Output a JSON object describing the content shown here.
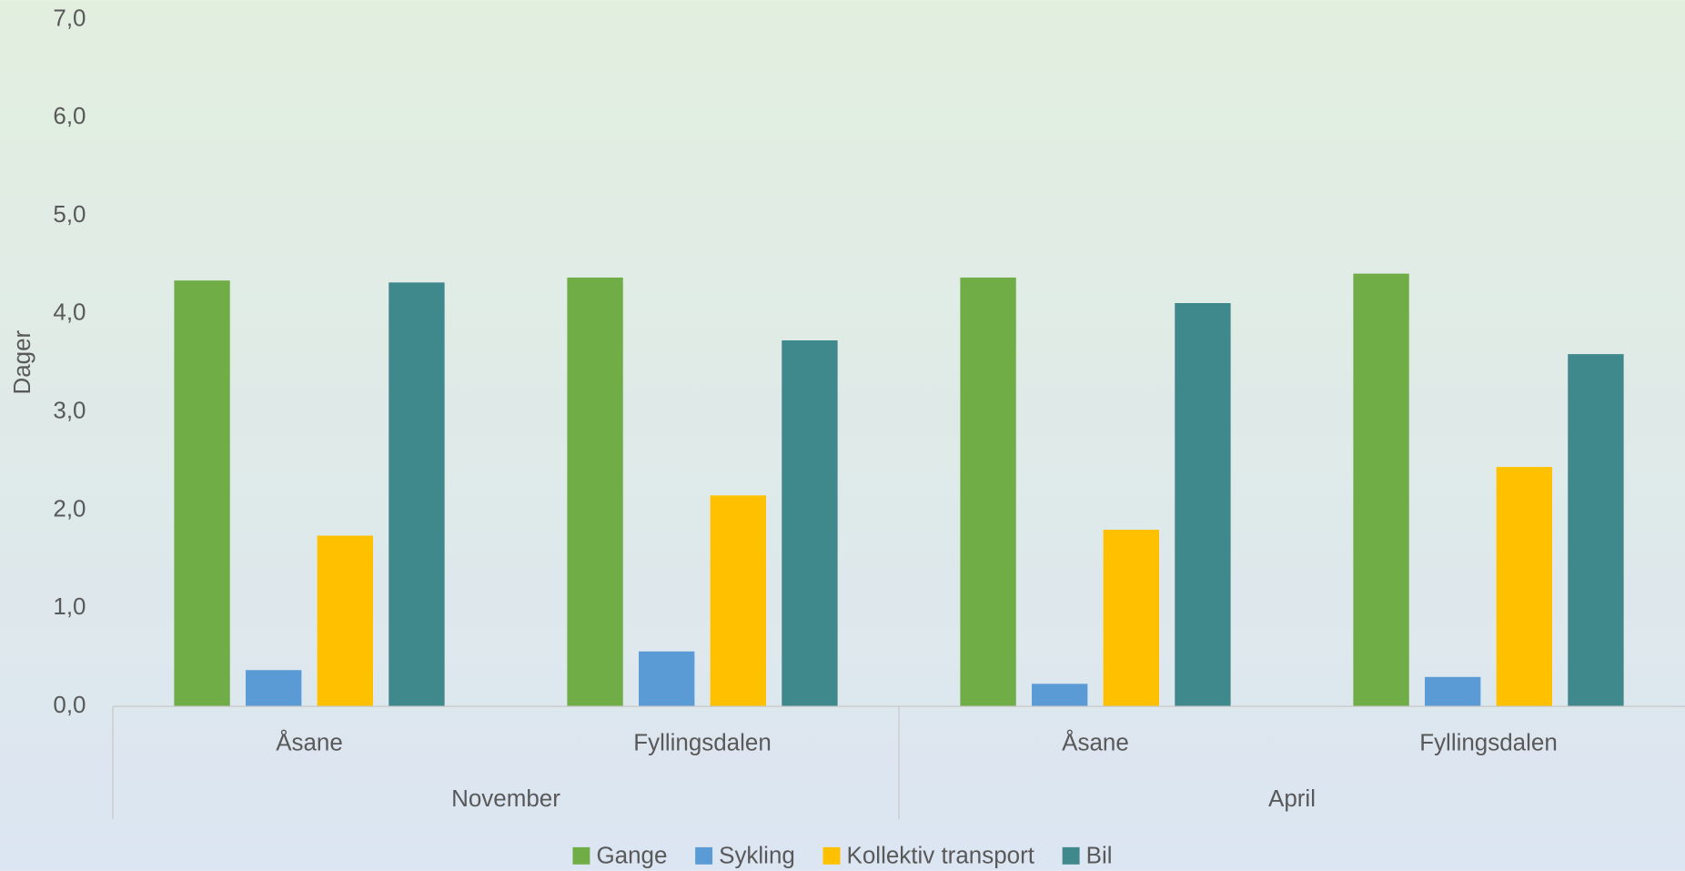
{
  "chart_data": {
    "type": "bar",
    "y_label": "Dager",
    "categories": [
      "Åsane",
      "Fyllingsdalen",
      "Åsane",
      "Fyllingsdalen"
    ],
    "groups": [
      "November",
      "April"
    ],
    "series": [
      {
        "name": "Gange",
        "color": "#70ad47",
        "values": [
          4.34,
          4.37,
          4.37,
          4.41
        ]
      },
      {
        "name": "Sykling",
        "color": "#5b9bd5",
        "values": [
          0.37,
          0.56,
          0.23,
          0.3
        ]
      },
      {
        "name": "Kollektiv transport",
        "color": "#ffc000",
        "values": [
          1.74,
          2.15,
          1.8,
          2.44
        ]
      },
      {
        "name": "Bil",
        "color": "#3f888c",
        "values": [
          4.32,
          3.73,
          4.11,
          3.59
        ]
      }
    ],
    "ylim": [
      0,
      7
    ],
    "yticks": [
      {
        "value": 0,
        "label": "0,0"
      },
      {
        "value": 1,
        "label": "1,0"
      },
      {
        "value": 2,
        "label": "2,0"
      },
      {
        "value": 3,
        "label": "3,0"
      },
      {
        "value": 4,
        "label": "4,0"
      },
      {
        "value": 5,
        "label": "5,0"
      },
      {
        "value": 6,
        "label": "6,0"
      },
      {
        "value": 7,
        "label": "7,0"
      }
    ],
    "grid": false,
    "legend": "bottom"
  }
}
